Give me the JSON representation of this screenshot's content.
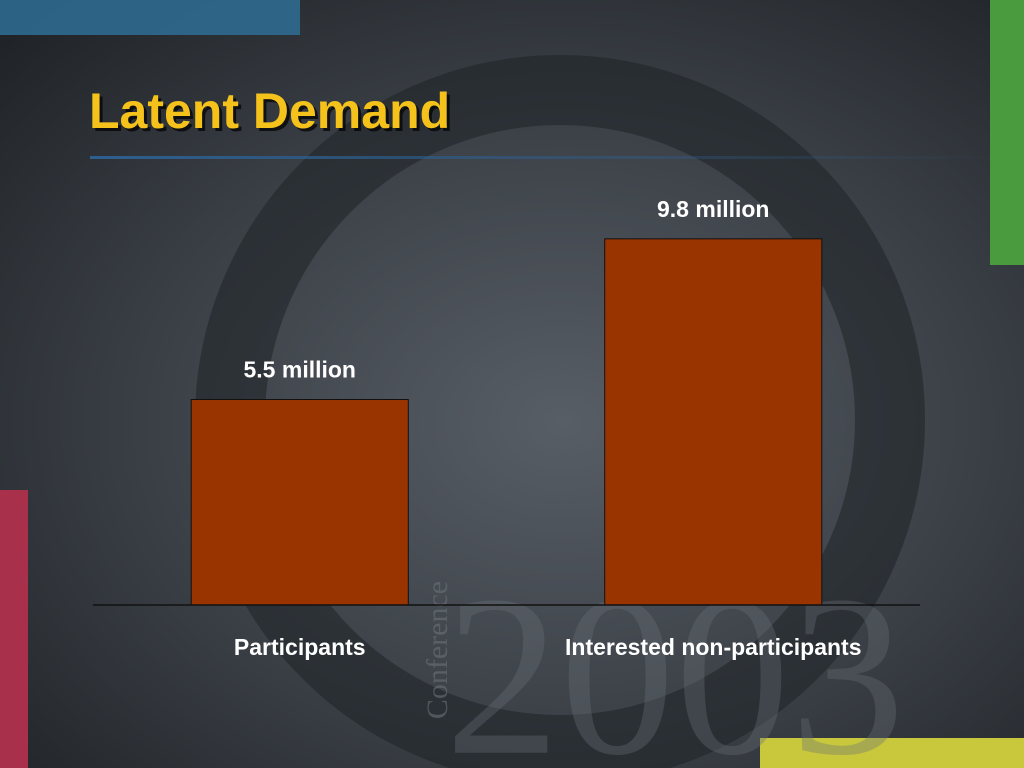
{
  "chart_data": {
    "type": "bar",
    "title": "Latent Demand",
    "categories": [
      "Participants",
      "Interested non-participants"
    ],
    "values": [
      5.5,
      9.8
    ],
    "value_labels": [
      "5.5 million",
      "9.8 million"
    ],
    "color": "#993300",
    "ylim": [
      0,
      11
    ]
  },
  "watermark": {
    "word": "Conference",
    "year": "2003"
  }
}
